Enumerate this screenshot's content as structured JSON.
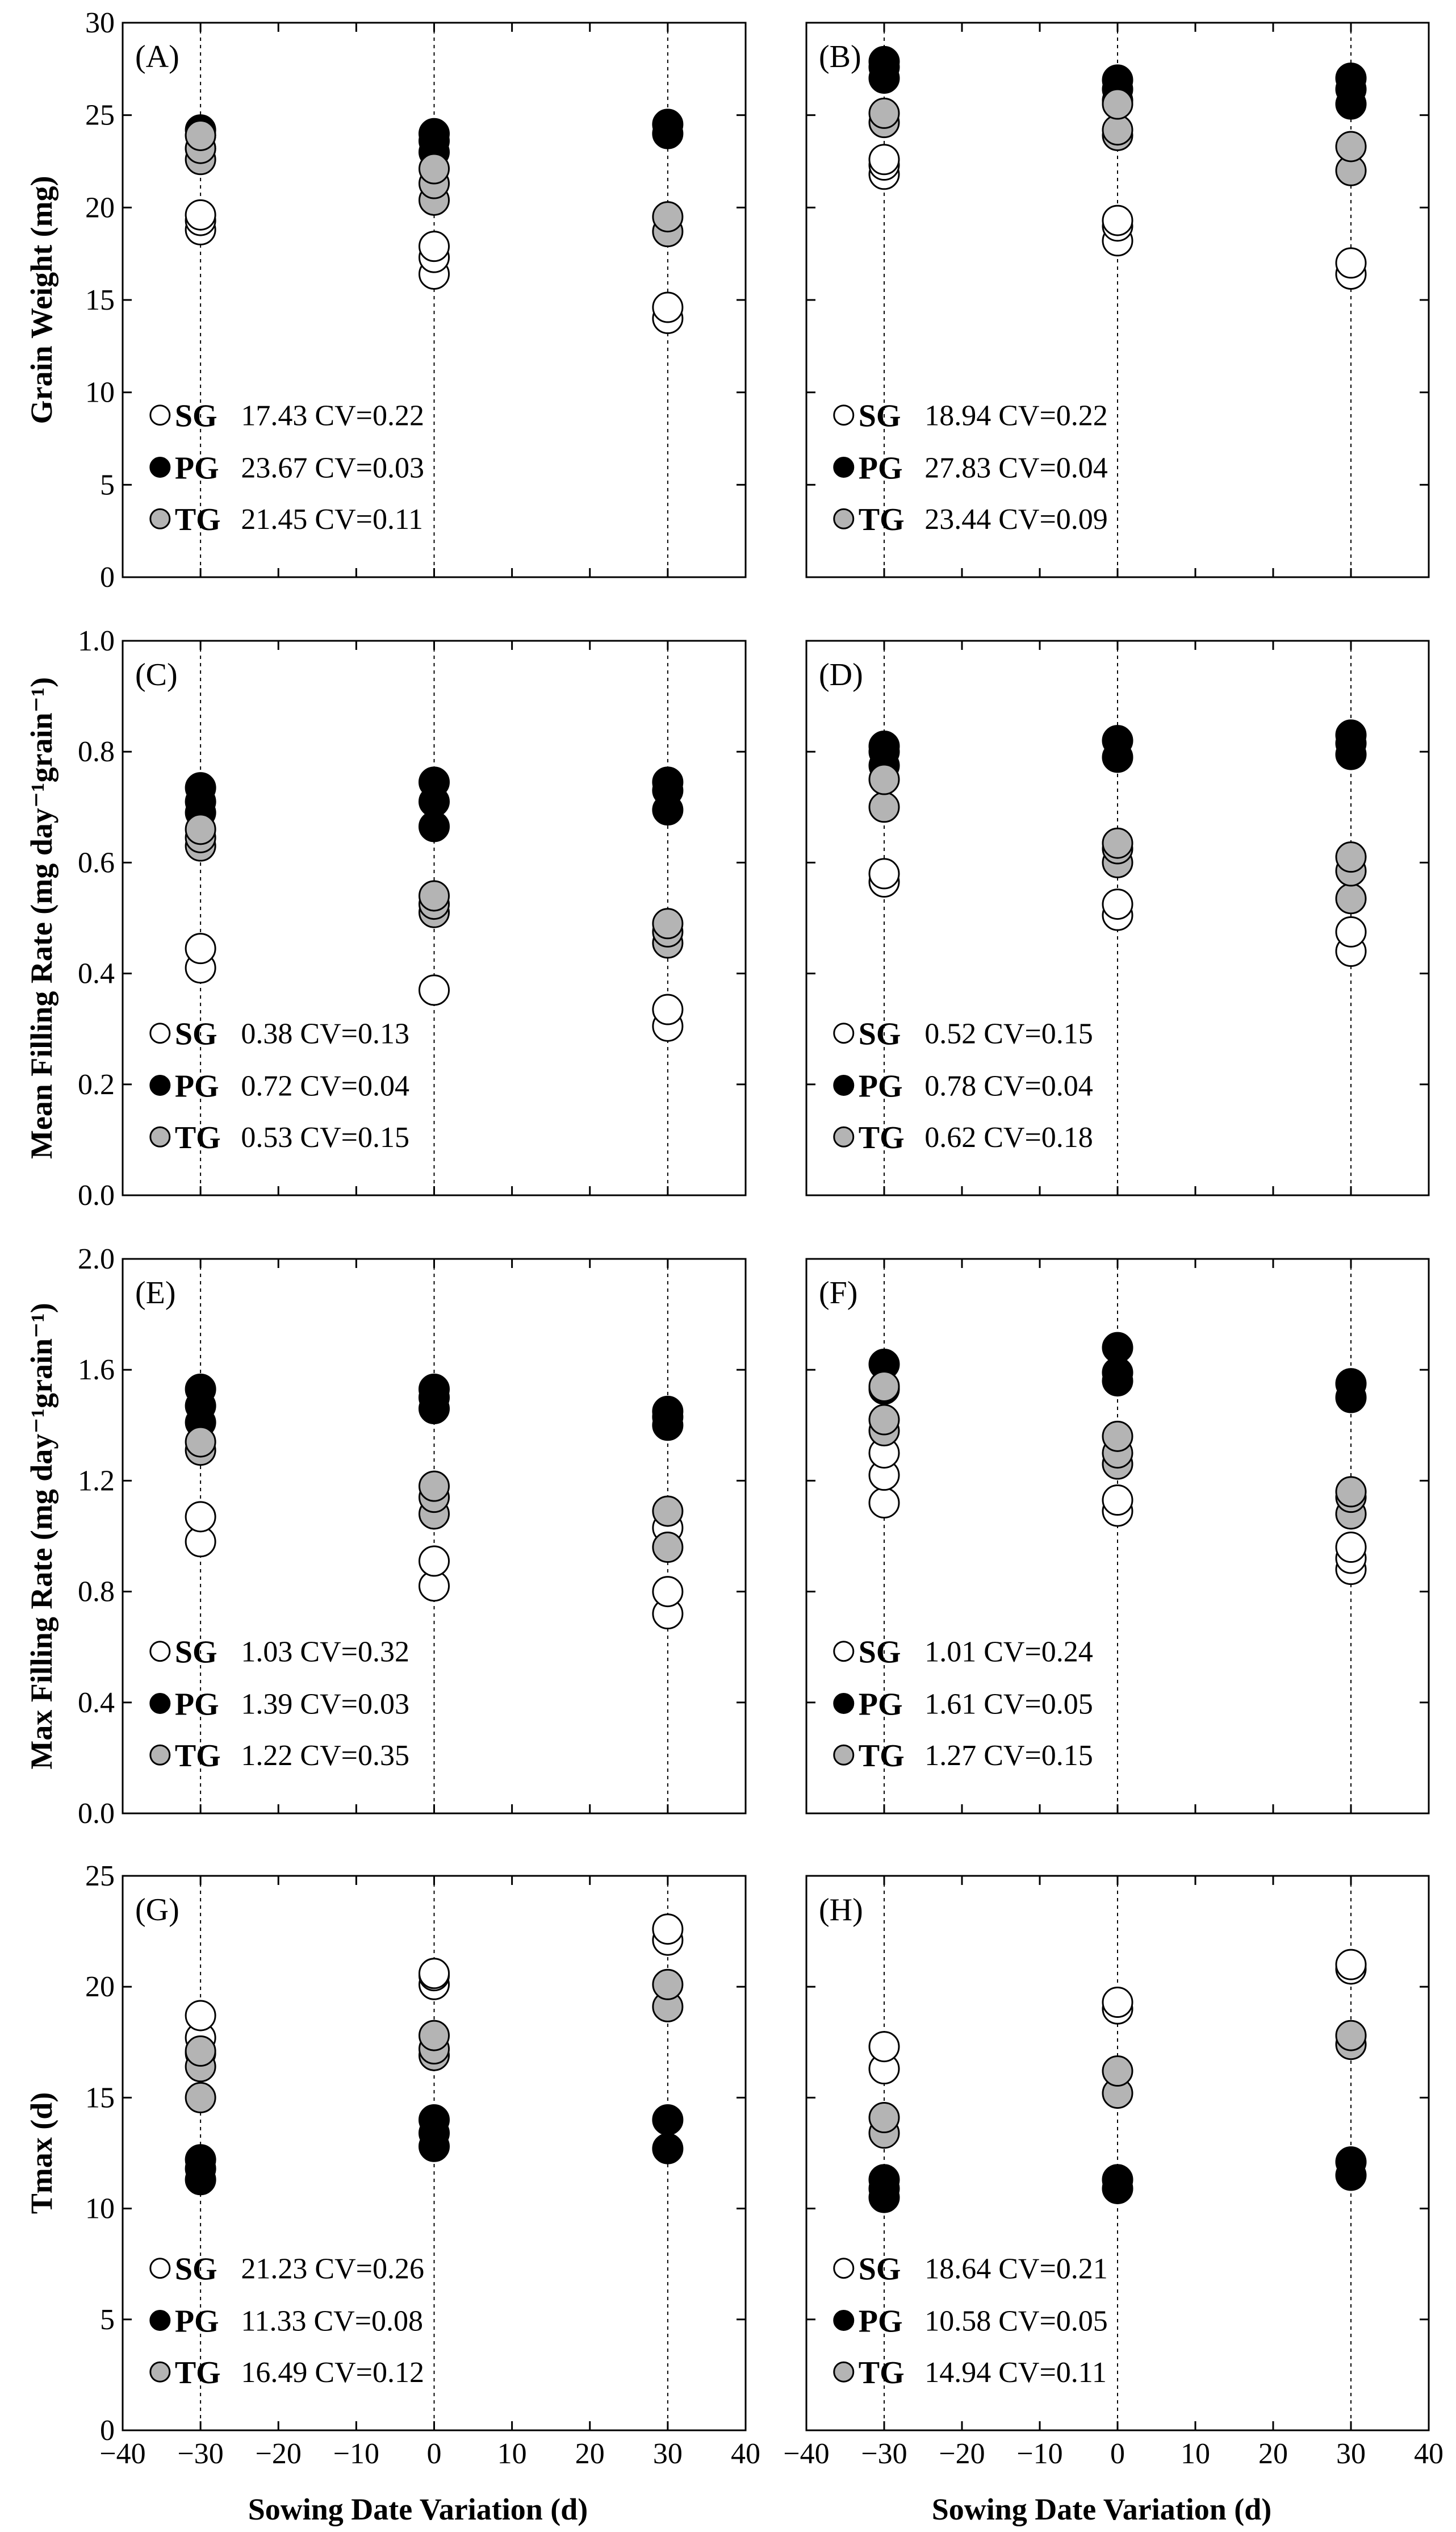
{
  "figure": {
    "xlabel": "Sowing Date Variation (d)",
    "group_names": {
      "SG": "SG",
      "PG": "PG",
      "TG": "TG"
    },
    "colors": {
      "SG": "#ffffff",
      "PG": "#000000",
      "TG": "#b4b4b4"
    }
  },
  "chart_data": [
    {
      "panel": "(A)",
      "type": "scatter",
      "ylabel": "Grain Weight (mg)",
      "xlim": [
        -40,
        40
      ],
      "ylim": [
        0,
        30
      ],
      "xticks": [
        -40,
        -30,
        -20,
        -10,
        0,
        10,
        20,
        30,
        40
      ],
      "yticks": [
        0,
        5,
        10,
        15,
        20,
        25,
        30
      ],
      "xticklabels": [
        "−40",
        "−30",
        "−20",
        "−10",
        "0",
        "10",
        "20",
        "30",
        "40"
      ],
      "yticklabels": [
        "0",
        "5",
        "10",
        "15",
        "20",
        "25",
        "30"
      ],
      "series": [
        {
          "name": "SG",
          "x": [
            -30,
            -30,
            -30,
            0,
            0,
            0,
            30,
            30
          ],
          "y": [
            18.8,
            19.3,
            19.6,
            16.4,
            17.3,
            17.9,
            14.0,
            14.6
          ]
        },
        {
          "name": "PG",
          "x": [
            -30,
            -30,
            -30,
            0,
            0,
            0,
            30,
            30
          ],
          "y": [
            23.2,
            23.9,
            24.2,
            23.0,
            23.6,
            24.0,
            24.0,
            24.5
          ]
        },
        {
          "name": "TG",
          "x": [
            -30,
            -30,
            -30,
            0,
            0,
            0,
            30,
            30
          ],
          "y": [
            22.6,
            23.2,
            23.9,
            20.4,
            21.3,
            22.1,
            18.7,
            19.5
          ]
        }
      ],
      "legend": [
        {
          "name": "SG",
          "mean": "17.43",
          "cv": "CV=0.22"
        },
        {
          "name": "PG",
          "mean": "23.67",
          "cv": "CV=0.03"
        },
        {
          "name": "TG",
          "mean": "21.45",
          "cv": "CV=0.11"
        }
      ]
    },
    {
      "panel": "(B)",
      "type": "scatter",
      "ylabel": "",
      "xlim": [
        -40,
        40
      ],
      "ylim": [
        0,
        30
      ],
      "xticks": [
        -40,
        -30,
        -20,
        -10,
        0,
        10,
        20,
        30,
        40
      ],
      "yticks": [
        0,
        5,
        10,
        15,
        20,
        25,
        30
      ],
      "xticklabels": [
        "−40",
        "−30",
        "−20",
        "−10",
        "0",
        "10",
        "20",
        "30",
        "40"
      ],
      "yticklabels": [],
      "series": [
        {
          "name": "SG",
          "x": [
            -30,
            -30,
            -30,
            0,
            0,
            0,
            30,
            30
          ],
          "y": [
            21.8,
            22.3,
            22.6,
            18.2,
            19.0,
            19.3,
            16.4,
            17.0
          ]
        },
        {
          "name": "PG",
          "x": [
            -30,
            -30,
            -30,
            0,
            0,
            0,
            30,
            30,
            30
          ],
          "y": [
            27.0,
            27.6,
            27.9,
            25.8,
            26.4,
            26.9,
            25.6,
            26.4,
            27.0
          ]
        },
        {
          "name": "TG",
          "x": [
            -30,
            -30,
            0,
            0,
            0,
            30,
            30
          ],
          "y": [
            24.6,
            25.1,
            23.9,
            24.2,
            25.6,
            22.0,
            23.3
          ]
        }
      ],
      "legend": [
        {
          "name": "SG",
          "mean": "18.94",
          "cv": "CV=0.22"
        },
        {
          "name": "PG",
          "mean": "27.83",
          "cv": "CV=0.04"
        },
        {
          "name": "TG",
          "mean": "23.44",
          "cv": "CV=0.09"
        }
      ]
    },
    {
      "panel": "(C)",
      "type": "scatter",
      "ylabel": "Mean Filling Rate (mg day⁻¹grain⁻¹)",
      "xlim": [
        -40,
        40
      ],
      "ylim": [
        0,
        1.0
      ],
      "xticks": [
        -40,
        -30,
        -20,
        -10,
        0,
        10,
        20,
        30,
        40
      ],
      "yticks": [
        0,
        0.2,
        0.4,
        0.6,
        0.8,
        1.0
      ],
      "xticklabels": [
        "−40",
        "−30",
        "−20",
        "−10",
        "0",
        "10",
        "20",
        "30",
        "40"
      ],
      "yticklabels": [
        "0.0",
        "0.2",
        "0.4",
        "0.6",
        "0.8",
        "1.0"
      ],
      "series": [
        {
          "name": "SG",
          "x": [
            -30,
            -30,
            0,
            30,
            30
          ],
          "y": [
            0.41,
            0.445,
            0.37,
            0.305,
            0.335
          ]
        },
        {
          "name": "PG",
          "x": [
            -30,
            -30,
            -30,
            0,
            0,
            0,
            30,
            30,
            30
          ],
          "y": [
            0.69,
            0.71,
            0.735,
            0.665,
            0.71,
            0.745,
            0.695,
            0.73,
            0.745
          ]
        },
        {
          "name": "TG",
          "x": [
            -30,
            -30,
            -30,
            0,
            0,
            0,
            30,
            30,
            30
          ],
          "y": [
            0.63,
            0.645,
            0.66,
            0.51,
            0.525,
            0.54,
            0.455,
            0.475,
            0.49
          ]
        }
      ],
      "legend": [
        {
          "name": "SG",
          "mean": "0.38",
          "cv": "CV=0.13"
        },
        {
          "name": "PG",
          "mean": "0.72",
          "cv": "CV=0.04"
        },
        {
          "name": "TG",
          "mean": "0.53",
          "cv": "CV=0.15"
        }
      ]
    },
    {
      "panel": "(D)",
      "type": "scatter",
      "ylabel": "",
      "xlim": [
        -40,
        40
      ],
      "ylim": [
        0,
        1.0
      ],
      "xticks": [
        -40,
        -30,
        -20,
        -10,
        0,
        10,
        20,
        30,
        40
      ],
      "yticks": [
        0,
        0.2,
        0.4,
        0.6,
        0.8,
        1.0
      ],
      "xticklabels": [
        "−40",
        "−30",
        "−20",
        "−10",
        "0",
        "10",
        "20",
        "30",
        "40"
      ],
      "yticklabels": [],
      "series": [
        {
          "name": "SG",
          "x": [
            -30,
            -30,
            0,
            0,
            30,
            30
          ],
          "y": [
            0.565,
            0.58,
            0.505,
            0.525,
            0.44,
            0.475
          ]
        },
        {
          "name": "PG",
          "x": [
            -30,
            -30,
            -30,
            0,
            0,
            30,
            30,
            30
          ],
          "y": [
            0.775,
            0.8,
            0.81,
            0.79,
            0.82,
            0.795,
            0.815,
            0.83
          ]
        },
        {
          "name": "TG",
          "x": [
            -30,
            -30,
            0,
            0,
            0,
            30,
            30,
            30
          ],
          "y": [
            0.7,
            0.75,
            0.6,
            0.625,
            0.635,
            0.535,
            0.585,
            0.61
          ]
        }
      ],
      "legend": [
        {
          "name": "SG",
          "mean": "0.52",
          "cv": "CV=0.15"
        },
        {
          "name": "PG",
          "mean": "0.78",
          "cv": "CV=0.04"
        },
        {
          "name": "TG",
          "mean": "0.62",
          "cv": "CV=0.18"
        }
      ]
    },
    {
      "panel": "(E)",
      "type": "scatter",
      "ylabel": "Max Filling Rate (mg day⁻¹grain⁻¹)",
      "xlim": [
        -40,
        40
      ],
      "ylim": [
        0,
        2.0
      ],
      "xticks": [
        -40,
        -30,
        -20,
        -10,
        0,
        10,
        20,
        30,
        40
      ],
      "yticks": [
        0,
        0.4,
        0.8,
        1.2,
        1.6,
        2.0
      ],
      "xticklabels": [
        "−40",
        "−30",
        "−20",
        "−10",
        "0",
        "10",
        "20",
        "30",
        "40"
      ],
      "yticklabels": [
        "0.0",
        "0.4",
        "0.8",
        "1.2",
        "1.6",
        "2.0"
      ],
      "series": [
        {
          "name": "SG",
          "x": [
            -30,
            -30,
            0,
            0,
            30,
            30,
            30
          ],
          "y": [
            0.98,
            1.07,
            0.82,
            0.91,
            0.72,
            0.8,
            1.03
          ]
        },
        {
          "name": "PG",
          "x": [
            -30,
            -30,
            -30,
            0,
            0,
            0,
            30,
            30,
            30
          ],
          "y": [
            1.41,
            1.47,
            1.53,
            1.46,
            1.5,
            1.53,
            1.4,
            1.43,
            1.45
          ]
        },
        {
          "name": "TG",
          "x": [
            -30,
            -30,
            0,
            0,
            0,
            30,
            30
          ],
          "y": [
            1.31,
            1.34,
            1.08,
            1.14,
            1.18,
            0.96,
            1.09
          ]
        }
      ],
      "legend": [
        {
          "name": "SG",
          "mean": "1.03",
          "cv": "CV=0.32"
        },
        {
          "name": "PG",
          "mean": "1.39",
          "cv": "CV=0.03"
        },
        {
          "name": "TG",
          "mean": "1.22",
          "cv": "CV=0.35"
        }
      ]
    },
    {
      "panel": "(F)",
      "type": "scatter",
      "ylabel": "",
      "xlim": [
        -40,
        40
      ],
      "ylim": [
        0,
        2.0
      ],
      "xticks": [
        -40,
        -30,
        -20,
        -10,
        0,
        10,
        20,
        30,
        40
      ],
      "yticks": [
        0,
        0.4,
        0.8,
        1.2,
        1.6,
        2.0
      ],
      "xticklabels": [
        "−40",
        "−30",
        "−20",
        "−10",
        "0",
        "10",
        "20",
        "30",
        "40"
      ],
      "yticklabels": [],
      "series": [
        {
          "name": "SG",
          "x": [
            -30,
            -30,
            -30,
            0,
            0,
            30,
            30,
            30
          ],
          "y": [
            1.12,
            1.22,
            1.3,
            1.09,
            1.13,
            0.88,
            0.92,
            0.96
          ]
        },
        {
          "name": "PG",
          "x": [
            -30,
            -30,
            0,
            0,
            0,
            30,
            30
          ],
          "y": [
            1.53,
            1.62,
            1.56,
            1.59,
            1.68,
            1.5,
            1.55
          ]
        },
        {
          "name": "TG",
          "x": [
            -30,
            -30,
            -30,
            0,
            0,
            0,
            30,
            30,
            30
          ],
          "y": [
            1.38,
            1.42,
            1.54,
            1.26,
            1.3,
            1.36,
            1.08,
            1.14,
            1.16
          ]
        }
      ],
      "legend": [
        {
          "name": "SG",
          "mean": "1.01",
          "cv": "CV=0.24"
        },
        {
          "name": "PG",
          "mean": "1.61",
          "cv": "CV=0.05"
        },
        {
          "name": "TG",
          "mean": "1.27",
          "cv": "CV=0.15"
        }
      ]
    },
    {
      "panel": "(G)",
      "type": "scatter",
      "ylabel": "Tmax (d)",
      "xlim": [
        -40,
        40
      ],
      "ylim": [
        0,
        25
      ],
      "xticks": [
        -40,
        -30,
        -20,
        -10,
        0,
        10,
        20,
        30,
        40
      ],
      "yticks": [
        0,
        5,
        10,
        15,
        20,
        25
      ],
      "xticklabels": [
        "−40",
        "−30",
        "−20",
        "−10",
        "0",
        "10",
        "20",
        "30",
        "40"
      ],
      "yticklabels": [
        "0",
        "5",
        "10",
        "15",
        "20",
        "25"
      ],
      "series": [
        {
          "name": "SG",
          "x": [
            -30,
            -30,
            -30,
            0,
            0,
            0,
            30,
            30
          ],
          "y": [
            17.0,
            17.7,
            18.7,
            20.1,
            20.5,
            20.6,
            22.1,
            22.6
          ]
        },
        {
          "name": "PG",
          "x": [
            -30,
            -30,
            -30,
            0,
            0,
            0,
            30,
            30
          ],
          "y": [
            11.3,
            11.8,
            12.2,
            12.8,
            13.4,
            14.0,
            12.7,
            14.0
          ]
        },
        {
          "name": "TG",
          "x": [
            -30,
            -30,
            -30,
            0,
            0,
            0,
            30,
            30
          ],
          "y": [
            15.0,
            16.4,
            17.1,
            16.9,
            17.2,
            17.8,
            19.1,
            20.1
          ]
        }
      ],
      "legend": [
        {
          "name": "SG",
          "mean": "21.23",
          "cv": "CV=0.26"
        },
        {
          "name": "PG",
          "mean": "11.33",
          "cv": "CV=0.08"
        },
        {
          "name": "TG",
          "mean": "16.49",
          "cv": "CV=0.12"
        }
      ]
    },
    {
      "panel": "(H)",
      "type": "scatter",
      "ylabel": "",
      "xlim": [
        -40,
        40
      ],
      "ylim": [
        0,
        25
      ],
      "xticks": [
        -40,
        -30,
        -20,
        -10,
        0,
        10,
        20,
        30,
        40
      ],
      "yticks": [
        0,
        5,
        10,
        15,
        20,
        25
      ],
      "xticklabels": [
        "−40",
        "−30",
        "−20",
        "−10",
        "0",
        "10",
        "20",
        "30",
        "40"
      ],
      "yticklabels": [],
      "series": [
        {
          "name": "SG",
          "x": [
            -30,
            -30,
            0,
            0,
            30,
            30
          ],
          "y": [
            16.3,
            17.3,
            19.0,
            19.3,
            20.8,
            21.0
          ]
        },
        {
          "name": "PG",
          "x": [
            -30,
            -30,
            -30,
            0,
            0,
            30,
            30
          ],
          "y": [
            10.5,
            10.9,
            11.3,
            10.9,
            11.3,
            11.5,
            12.1
          ]
        },
        {
          "name": "TG",
          "x": [
            -30,
            -30,
            0,
            0,
            30,
            30
          ],
          "y": [
            13.4,
            14.1,
            15.2,
            16.2,
            17.4,
            17.8
          ]
        }
      ],
      "legend": [
        {
          "name": "SG",
          "mean": "18.64",
          "cv": "CV=0.21"
        },
        {
          "name": "PG",
          "mean": "10.58",
          "cv": "CV=0.05"
        },
        {
          "name": "TG",
          "mean": "14.94",
          "cv": "CV=0.11"
        }
      ]
    }
  ]
}
